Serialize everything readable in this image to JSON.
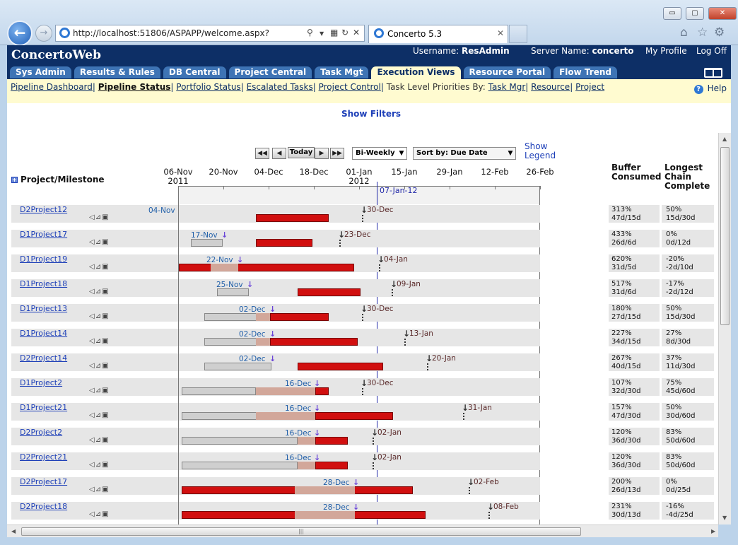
{
  "browser": {
    "url": "http://localhost:51806/ASPAPP/welcome.aspx?",
    "tab_title": "Concerto 5.3",
    "window_buttons": {
      "minimize": "▭",
      "restore": "▢",
      "close": "✕"
    }
  },
  "app": {
    "logo": "ConcertoWeb",
    "username_label": "Username:",
    "username": "ResAdmin",
    "server_label": "Server Name:",
    "server": "concerto",
    "my_profile": "My Profile",
    "log_off": "Log Off"
  },
  "tabs": [
    "Sys Admin",
    "Results & Rules",
    "DB Central",
    "Project Central",
    "Task Mgt",
    "Execution Views",
    "Resource Portal",
    "Flow Trend"
  ],
  "active_tab": "Execution Views",
  "subnav": {
    "pipeline_dashboard": "Pipeline Dashboard",
    "pipeline_status": "Pipeline Status",
    "portfolio_status": "Portfolio Status",
    "escalated_tasks": "Escalated Tasks",
    "project_control": "Project Control",
    "priorities_text": "Task Level Priorities By:",
    "task_mgr": "Task Mgr",
    "resource": "Resource",
    "project": "Project",
    "help": "Help",
    "sep": "|"
  },
  "filters": {
    "show_filters": "Show Filters"
  },
  "toolbar": {
    "today": "Today",
    "period": "Bi-Weekly",
    "sort": "Sort by: Due Date",
    "show_legend_1": "Show",
    "show_legend_2": "Legend"
  },
  "columns": {
    "project": "Project/Milestone",
    "buffer_1": "Buffer",
    "buffer_2": "Consumed",
    "chain_1": "Longest",
    "chain_2": "Chain",
    "chain_3": "Complete"
  },
  "timeline": {
    "dates": [
      "06-Nov",
      "20-Nov",
      "04-Dec",
      "18-Dec",
      "01-Jan",
      "15-Jan",
      "29-Jan",
      "12-Feb",
      "26-Feb"
    ],
    "year_2011": "2011",
    "year_2012": "2012",
    "today_label": "07-Jan-12"
  },
  "projects": [
    {
      "name": "D2Project12",
      "ms": "04-Nov",
      "due": "30-Dec",
      "buffer": "313%",
      "buffer_d": "47d/15d",
      "chain": "50%",
      "chain_d": "15d/30d"
    },
    {
      "name": "D1Project17",
      "ms": "17-Nov",
      "due": "23-Dec",
      "buffer": "433%",
      "buffer_d": "26d/6d",
      "chain": "0%",
      "chain_d": "0d/12d"
    },
    {
      "name": "D1Project19",
      "ms": "22-Nov",
      "due": "04-Jan",
      "buffer": "620%",
      "buffer_d": "31d/5d",
      "chain": "-20%",
      "chain_d": "-2d/10d"
    },
    {
      "name": "D1Project18",
      "ms": "25-Nov",
      "due": "09-Jan",
      "buffer": "517%",
      "buffer_d": "31d/6d",
      "chain": "-17%",
      "chain_d": "-2d/12d"
    },
    {
      "name": "D1Project13",
      "ms": "02-Dec",
      "due": "30-Dec",
      "buffer": "180%",
      "buffer_d": "27d/15d",
      "chain": "50%",
      "chain_d": "15d/30d"
    },
    {
      "name": "D1Project14",
      "ms": "02-Dec",
      "due": "13-Jan",
      "buffer": "227%",
      "buffer_d": "34d/15d",
      "chain": "27%",
      "chain_d": "8d/30d"
    },
    {
      "name": "D2Project14",
      "ms": "02-Dec",
      "due": "20-Jan",
      "buffer": "267%",
      "buffer_d": "40d/15d",
      "chain": "37%",
      "chain_d": "11d/30d"
    },
    {
      "name": "D1Project2",
      "ms": "16-Dec",
      "due": "30-Dec",
      "buffer": "107%",
      "buffer_d": "32d/30d",
      "chain": "75%",
      "chain_d": "45d/60d"
    },
    {
      "name": "D1Project21",
      "ms": "16-Dec",
      "due": "31-Jan",
      "buffer": "157%",
      "buffer_d": "47d/30d",
      "chain": "50%",
      "chain_d": "30d/60d"
    },
    {
      "name": "D2Project2",
      "ms": "16-Dec",
      "due": "02-Jan",
      "buffer": "120%",
      "buffer_d": "36d/30d",
      "chain": "83%",
      "chain_d": "50d/60d"
    },
    {
      "name": "D2Project21",
      "ms": "16-Dec",
      "due": "02-Jan",
      "buffer": "120%",
      "buffer_d": "36d/30d",
      "chain": "83%",
      "chain_d": "50d/60d"
    },
    {
      "name": "D2Project17",
      "ms": "28-Dec",
      "due": "02-Feb",
      "buffer": "200%",
      "buffer_d": "26d/13d",
      "chain": "0%",
      "chain_d": "0d/25d"
    },
    {
      "name": "D2Project18",
      "ms": "28-Dec",
      "due": "08-Feb",
      "buffer": "231%",
      "buffer_d": "30d/13d",
      "chain": "-16%",
      "chain_d": "-4d/25d"
    }
  ],
  "colors": {
    "header": "#0d2f66",
    "subnav": "#fffbd0",
    "bar_red": "#d10f0f",
    "bar_grey": "#cfcfcf",
    "bar_tan": "#d2a79a",
    "today_line": "#2229a8"
  }
}
